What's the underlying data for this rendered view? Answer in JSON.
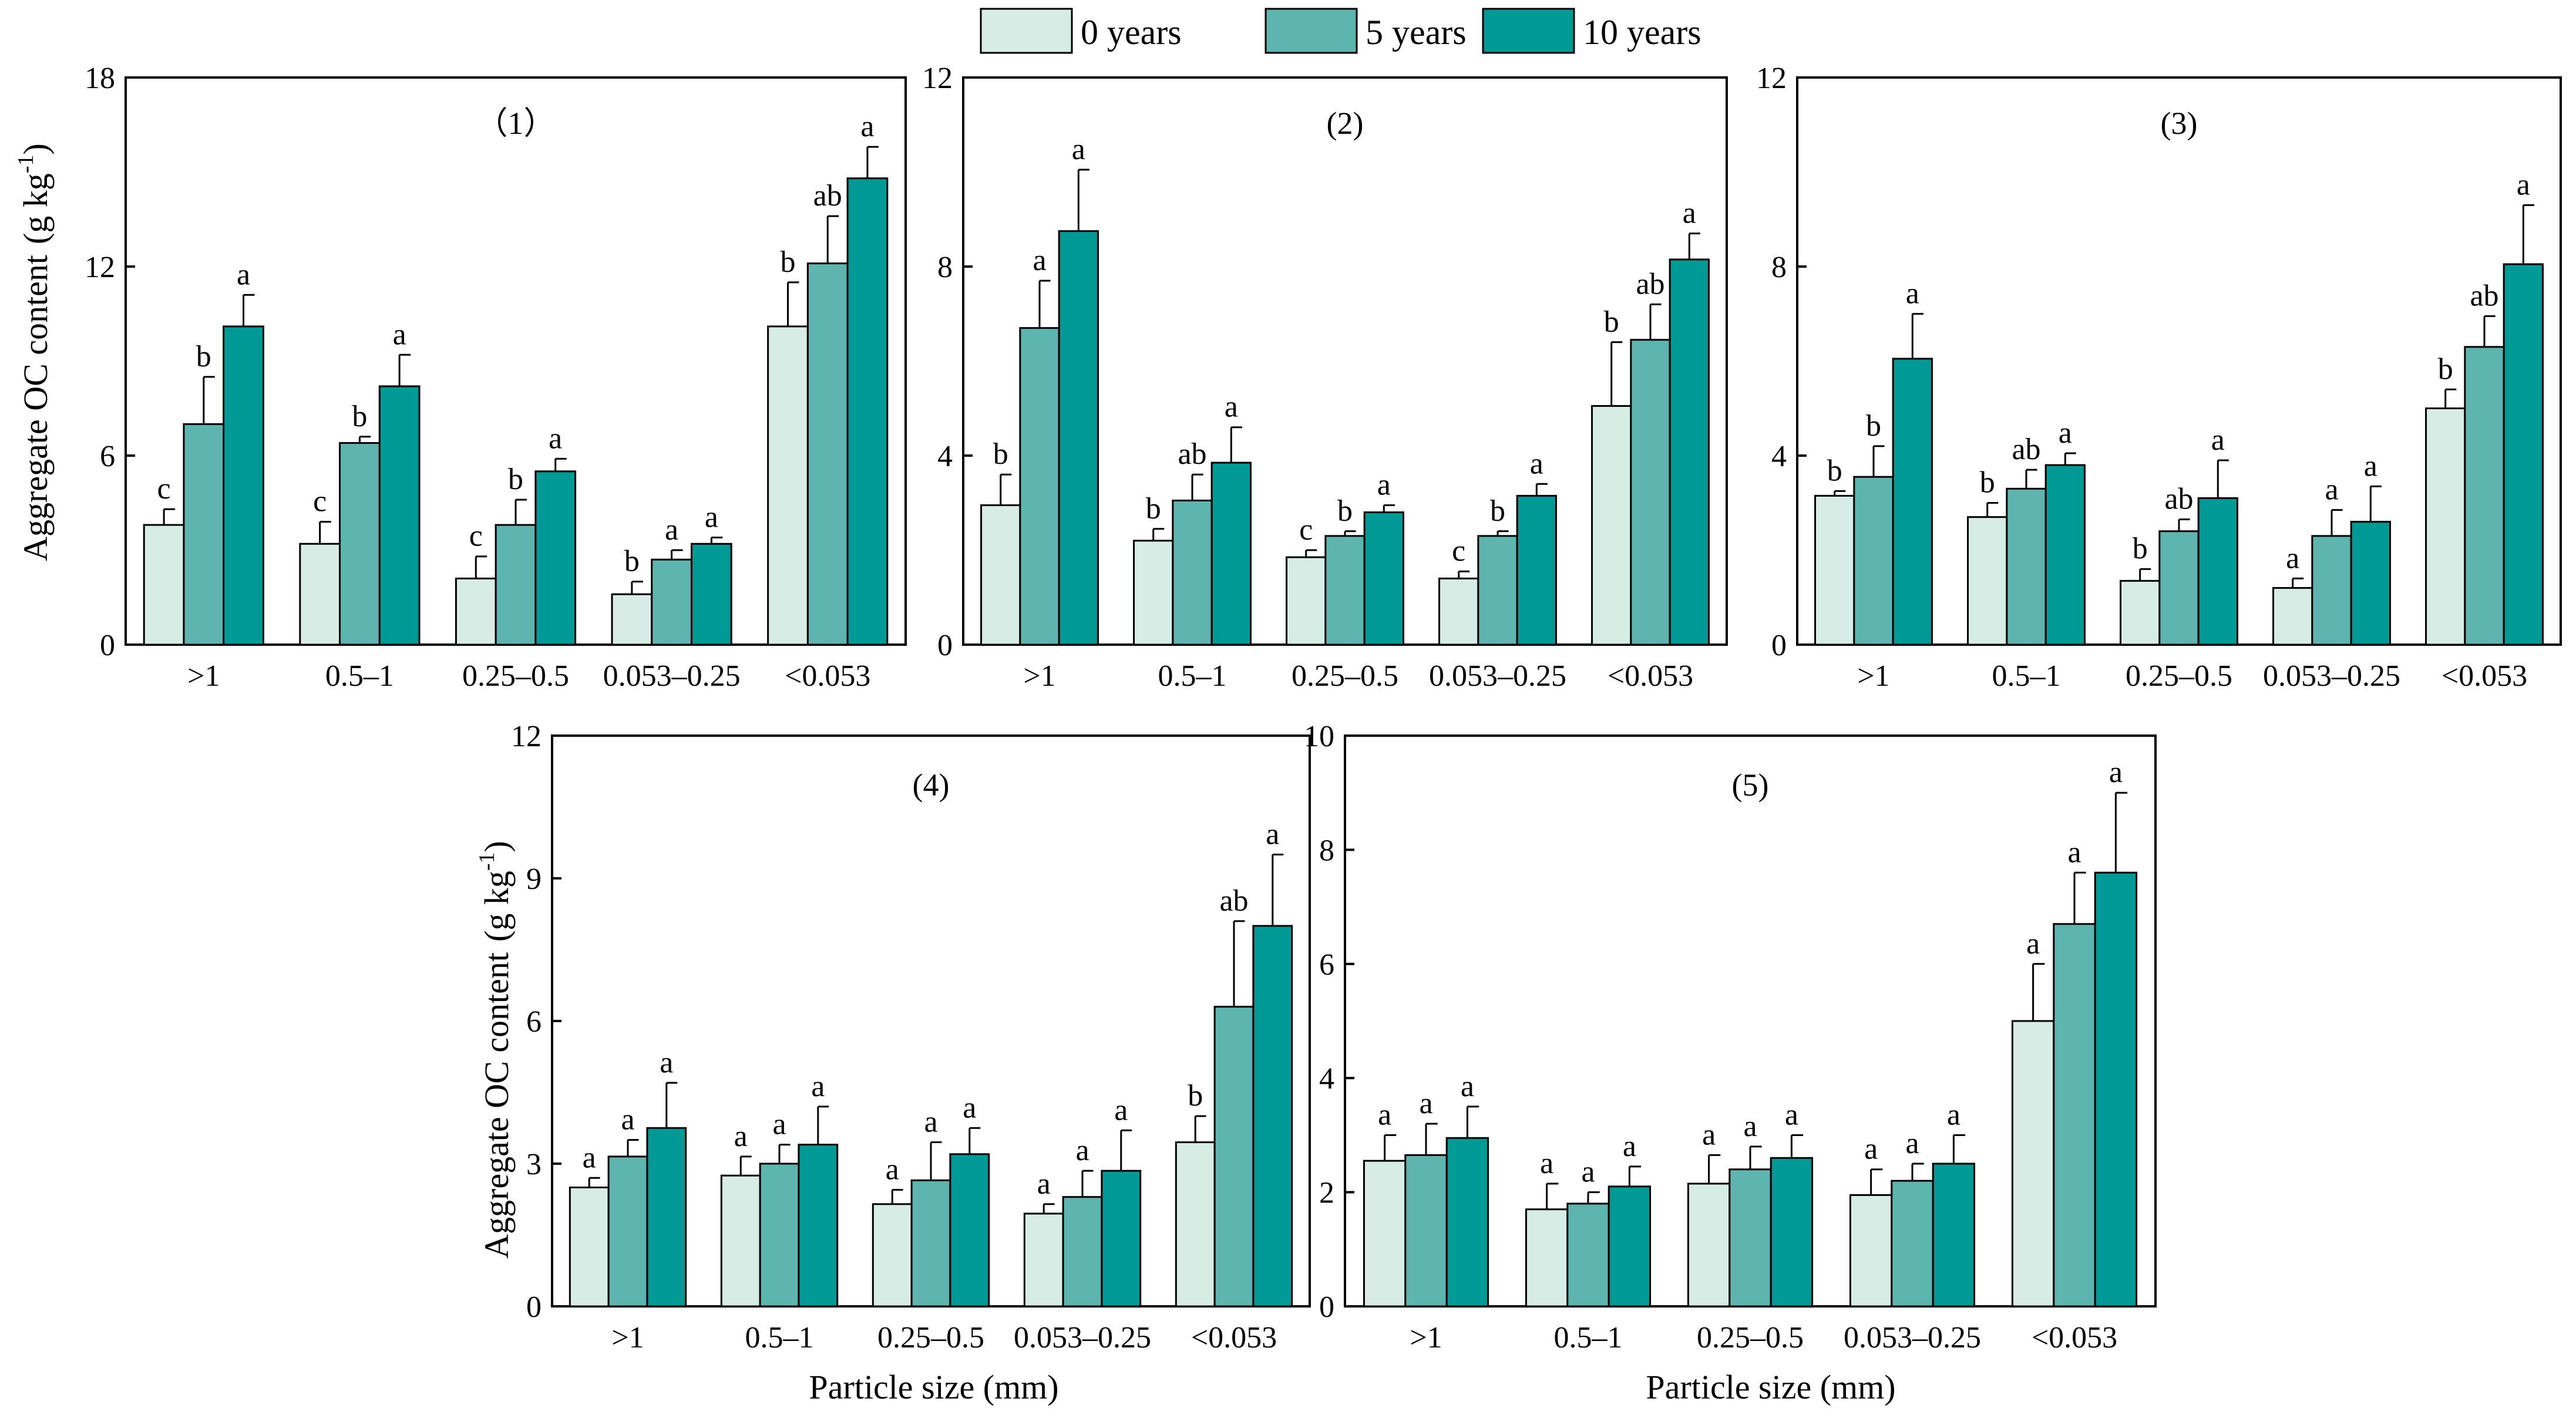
{
  "legend": {
    "entries": [
      "0 years",
      "5 years",
      "10 years"
    ],
    "colors": [
      "#d8ece6",
      "#5eb4ae",
      "#009a96"
    ]
  },
  "axis_labels": {
    "y_main": "Aggregate OC content",
    "y_unit_base": "(g kg",
    "y_unit_sup": "-1",
    "y_unit_close": ")",
    "x": "Particle size (mm)"
  },
  "chart_data": [
    {
      "type": "bar",
      "title": "（1）",
      "categories": [
        ">1",
        "0.5–1",
        "0.25–0.5",
        "0.053–0.25",
        "<0.053"
      ],
      "ylim": [
        0,
        18
      ],
      "yticks": [
        0,
        6,
        12,
        18
      ],
      "xlabel": "",
      "ylabel": "Aggregate OC content (g kg-1)",
      "series": [
        {
          "name": "0 years",
          "values": [
            3.8,
            3.2,
            2.1,
            1.6,
            10.1
          ],
          "errors": [
            0.5,
            0.7,
            0.7,
            0.4,
            1.4
          ],
          "labels": [
            "c",
            "c",
            "c",
            "b",
            "b"
          ]
        },
        {
          "name": "5 years",
          "values": [
            7.0,
            6.4,
            3.8,
            2.7,
            12.1
          ],
          "errors": [
            1.5,
            0.2,
            0.8,
            0.3,
            1.5
          ],
          "labels": [
            "b",
            "b",
            "b",
            "a",
            "ab"
          ]
        },
        {
          "name": "10 years",
          "values": [
            10.1,
            8.2,
            5.5,
            3.2,
            14.8
          ],
          "errors": [
            1.0,
            1.0,
            0.4,
            0.2,
            1.0
          ],
          "labels": [
            "a",
            "a",
            "a",
            "a",
            "a"
          ]
        }
      ]
    },
    {
      "type": "bar",
      "title": "(2)",
      "categories": [
        ">1",
        "0.5–1",
        "0.25–0.5",
        "0.053–0.25",
        "<0.053"
      ],
      "ylim": [
        0,
        12
      ],
      "yticks": [
        0,
        4,
        8,
        12
      ],
      "xlabel": "",
      "ylabel": "",
      "series": [
        {
          "name": "0 years",
          "values": [
            2.95,
            2.2,
            1.85,
            1.4,
            5.05
          ],
          "errors": [
            0.65,
            0.25,
            0.15,
            0.15,
            1.35
          ],
          "labels": [
            "b",
            "b",
            "c",
            "c",
            "b"
          ]
        },
        {
          "name": "5 years",
          "values": [
            6.7,
            3.05,
            2.3,
            2.3,
            6.45
          ],
          "errors": [
            1.0,
            0.55,
            0.1,
            0.1,
            0.75
          ],
          "labels": [
            "a",
            "ab",
            "b",
            "b",
            "ab"
          ]
        },
        {
          "name": "10 years",
          "values": [
            8.75,
            3.85,
            2.8,
            3.15,
            8.15
          ],
          "errors": [
            1.3,
            0.75,
            0.15,
            0.25,
            0.55
          ],
          "labels": [
            "a",
            "a",
            "a",
            "a",
            "a"
          ]
        }
      ]
    },
    {
      "type": "bar",
      "title": "(3)",
      "categories": [
        ">1",
        "0.5–1",
        "0.25–0.5",
        "0.053–0.25",
        "<0.053"
      ],
      "ylim": [
        0,
        12
      ],
      "yticks": [
        0,
        4,
        8,
        12
      ],
      "xlabel": "",
      "ylabel": "",
      "series": [
        {
          "name": "0 years",
          "values": [
            3.15,
            2.7,
            1.35,
            1.2,
            5.0
          ],
          "errors": [
            0.1,
            0.3,
            0.25,
            0.2,
            0.4
          ],
          "labels": [
            "b",
            "b",
            "b",
            "a",
            "b"
          ]
        },
        {
          "name": "5 years",
          "values": [
            3.55,
            3.3,
            2.4,
            2.3,
            6.3
          ],
          "errors": [
            0.65,
            0.4,
            0.25,
            0.55,
            0.65
          ],
          "labels": [
            "b",
            "ab",
            "ab",
            "a",
            "ab"
          ]
        },
        {
          "name": "10 years",
          "values": [
            6.05,
            3.8,
            3.1,
            2.6,
            8.05
          ],
          "errors": [
            0.95,
            0.25,
            0.8,
            0.75,
            1.25
          ],
          "labels": [
            "a",
            "a",
            "a",
            "a",
            "a"
          ]
        }
      ]
    },
    {
      "type": "bar",
      "title": "(4)",
      "categories": [
        ">1",
        "0.5–1",
        "0.25–0.5",
        "0.053–0.25",
        "<0.053"
      ],
      "ylim": [
        0,
        12
      ],
      "yticks": [
        0,
        3,
        6,
        9,
        12
      ],
      "xlabel": "Particle size (mm)",
      "ylabel": "Aggregate OC content (g kg-1)",
      "series": [
        {
          "name": "0 years",
          "values": [
            2.5,
            2.75,
            2.15,
            1.95,
            3.45
          ],
          "errors": [
            0.2,
            0.4,
            0.3,
            0.2,
            0.55
          ],
          "labels": [
            "a",
            "a",
            "a",
            "a",
            "b"
          ]
        },
        {
          "name": "5 years",
          "values": [
            3.15,
            3.0,
            2.65,
            2.3,
            6.3
          ],
          "errors": [
            0.35,
            0.4,
            0.8,
            0.55,
            1.8
          ],
          "labels": [
            "a",
            "a",
            "a",
            "a",
            "ab"
          ]
        },
        {
          "name": "10 years",
          "values": [
            3.75,
            3.4,
            3.2,
            2.85,
            8.0
          ],
          "errors": [
            0.95,
            0.8,
            0.55,
            0.85,
            1.5
          ],
          "labels": [
            "a",
            "a",
            "a",
            "a",
            "a"
          ]
        }
      ]
    },
    {
      "type": "bar",
      "title": "(5)",
      "categories": [
        ">1",
        "0.5–1",
        "0.25–0.5",
        "0.053–0.25",
        "<0.053"
      ],
      "ylim": [
        0,
        10
      ],
      "yticks": [
        0,
        2,
        4,
        6,
        8,
        10
      ],
      "xlabel": "Particle size (mm)",
      "ylabel": "",
      "series": [
        {
          "name": "0 years",
          "values": [
            2.55,
            1.7,
            2.15,
            1.95,
            5.0
          ],
          "errors": [
            0.45,
            0.45,
            0.5,
            0.45,
            1.0
          ],
          "labels": [
            "a",
            "a",
            "a",
            "a",
            "a"
          ]
        },
        {
          "name": "5 years",
          "values": [
            2.65,
            1.8,
            2.4,
            2.2,
            6.7
          ],
          "errors": [
            0.55,
            0.2,
            0.4,
            0.3,
            0.9
          ],
          "labels": [
            "a",
            "a",
            "a",
            "a",
            "a"
          ]
        },
        {
          "name": "10 years",
          "values": [
            2.95,
            2.1,
            2.6,
            2.5,
            7.6
          ],
          "errors": [
            0.55,
            0.35,
            0.4,
            0.5,
            1.4
          ],
          "labels": [
            "a",
            "a",
            "a",
            "a",
            "a"
          ]
        }
      ]
    }
  ]
}
